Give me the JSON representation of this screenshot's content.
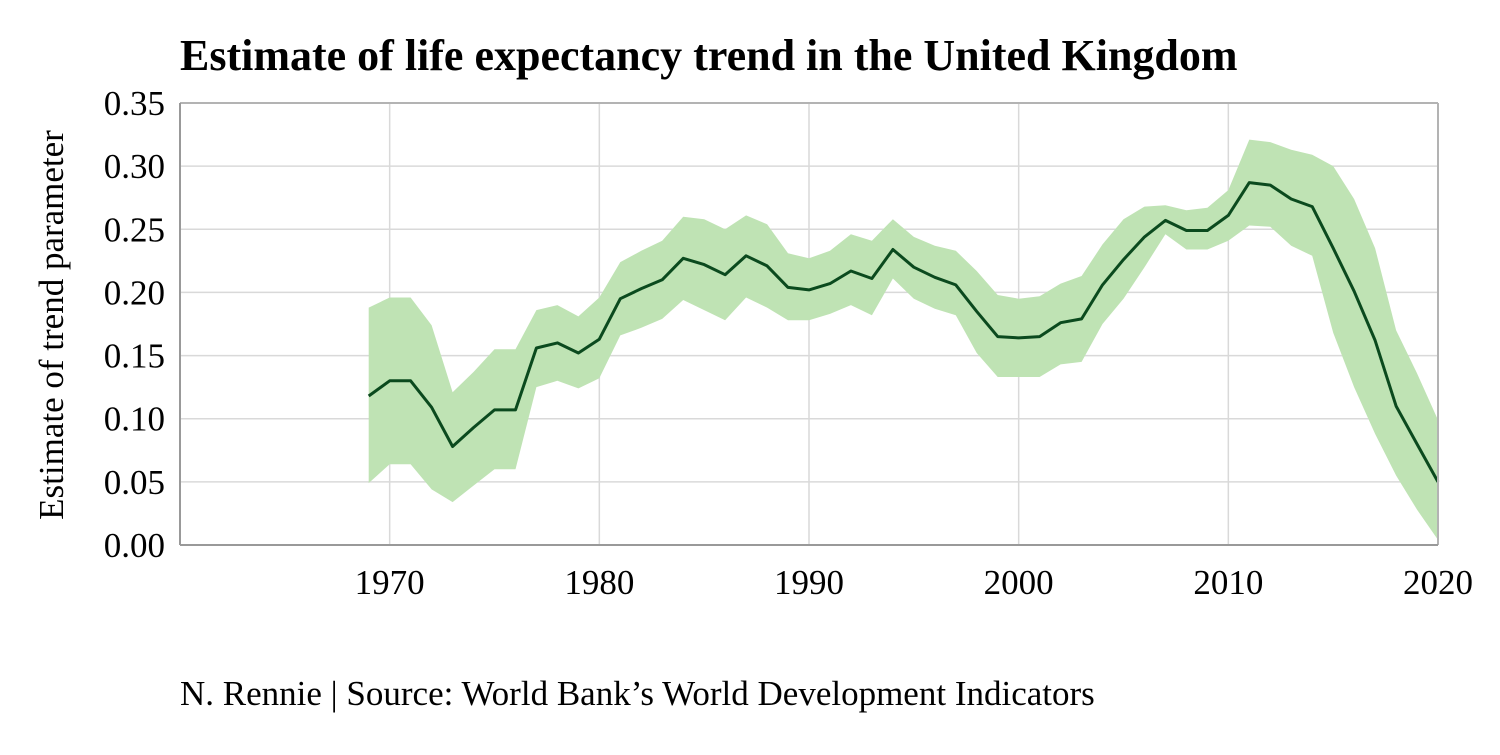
{
  "chart_data": {
    "type": "line",
    "title": "Estimate of life expectancy trend in the United Kingdom",
    "xlabel": "",
    "ylabel": "Estimate of trend parameter",
    "caption": "N. Rennie | Source: World Bank’s World Development Indicators",
    "xlim": [
      1960,
      2020
    ],
    "ylim": [
      0,
      0.35
    ],
    "x_ticks": [
      1970,
      1980,
      1990,
      2000,
      2010,
      2020
    ],
    "y_ticks": [
      "0.00",
      "0.05",
      "0.10",
      "0.15",
      "0.20",
      "0.25",
      "0.30",
      "0.35"
    ],
    "grid": true,
    "colors": {
      "line": "#0b4a1e",
      "band": "#bfe3b4",
      "grid": "#d9d9d9",
      "axis": "#b3b3b3"
    },
    "series": [
      {
        "x": [
          1969,
          1970,
          1971,
          1972,
          1973,
          1974,
          1975,
          1976,
          1977,
          1978,
          1979,
          1980,
          1981,
          1982,
          1983,
          1984,
          1985,
          1986,
          1987,
          1988,
          1989,
          1990,
          1991,
          1992,
          1993,
          1994,
          1995,
          1996,
          1997,
          1998,
          1999,
          2000,
          2001,
          2002,
          2003,
          2004,
          2005,
          2006,
          2007,
          2008,
          2009,
          2010,
          2011,
          2012,
          2013,
          2014,
          2015,
          2016,
          2017,
          2018,
          2019,
          2020
        ],
        "values": [
          0.118,
          0.13,
          0.13,
          0.109,
          0.078,
          0.093,
          0.107,
          0.107,
          0.156,
          0.16,
          0.152,
          0.163,
          0.195,
          0.203,
          0.21,
          0.227,
          0.222,
          0.214,
          0.229,
          0.221,
          0.204,
          0.202,
          0.207,
          0.217,
          0.211,
          0.234,
          0.22,
          0.212,
          0.206,
          0.185,
          0.165,
          0.164,
          0.165,
          0.176,
          0.179,
          0.206,
          0.226,
          0.244,
          0.257,
          0.249,
          0.249,
          0.261,
          0.287,
          0.285,
          0.274,
          0.268,
          0.235,
          0.201,
          0.162,
          0.11,
          0.08,
          0.05
        ],
        "lower": [
          0.049,
          0.064,
          0.064,
          0.044,
          0.034,
          0.047,
          0.06,
          0.06,
          0.125,
          0.13,
          0.124,
          0.132,
          0.166,
          0.172,
          0.179,
          0.194,
          0.186,
          0.178,
          0.196,
          0.188,
          0.178,
          0.178,
          0.183,
          0.19,
          0.182,
          0.211,
          0.195,
          0.187,
          0.182,
          0.152,
          0.133,
          0.133,
          0.133,
          0.143,
          0.145,
          0.175,
          0.195,
          0.22,
          0.246,
          0.234,
          0.234,
          0.241,
          0.253,
          0.252,
          0.237,
          0.229,
          0.168,
          0.125,
          0.088,
          0.055,
          0.028,
          0.004
        ],
        "upper": [
          0.188,
          0.196,
          0.196,
          0.174,
          0.121,
          0.137,
          0.155,
          0.155,
          0.186,
          0.19,
          0.181,
          0.196,
          0.224,
          0.233,
          0.241,
          0.26,
          0.258,
          0.25,
          0.261,
          0.254,
          0.231,
          0.227,
          0.233,
          0.246,
          0.241,
          0.258,
          0.244,
          0.237,
          0.233,
          0.217,
          0.198,
          0.195,
          0.197,
          0.207,
          0.213,
          0.238,
          0.258,
          0.268,
          0.269,
          0.265,
          0.267,
          0.281,
          0.321,
          0.319,
          0.313,
          0.309,
          0.3,
          0.274,
          0.235,
          0.17,
          0.136,
          0.099
        ]
      }
    ]
  }
}
